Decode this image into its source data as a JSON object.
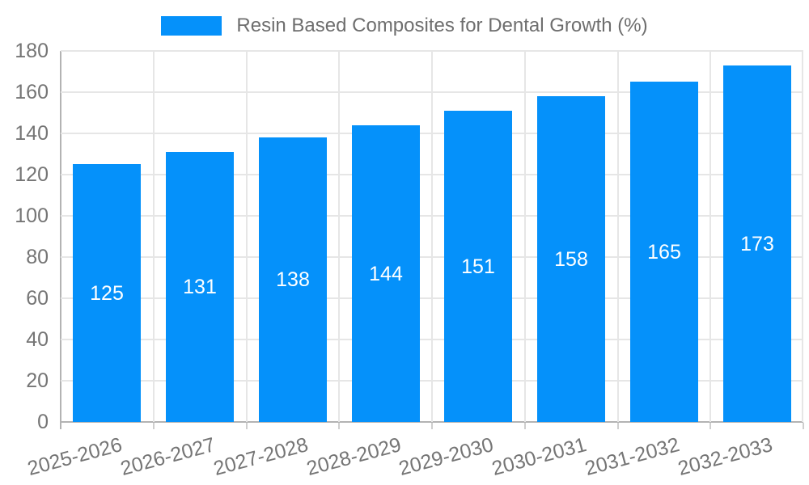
{
  "colors": {
    "bar": "#0591fa",
    "grid": "#e6e6e6",
    "axis": "#b3b3b3",
    "tick": "#cfcfcf",
    "tick_text": "#757575",
    "legend_text": "#6e6e6e",
    "bar_label": "#ffffff",
    "background": "#ffffff"
  },
  "chart_data": {
    "type": "bar",
    "title": "Resin Based Composites for Dental Growth (%)",
    "categories": [
      "2025-2026",
      "2026-2027",
      "2027-2028",
      "2028-2029",
      "2029-2030",
      "2030-2031",
      "2031-2032",
      "2032-2033"
    ],
    "values": [
      125,
      131,
      138,
      144,
      151,
      158,
      165,
      173
    ],
    "series_name": "Resin Based Composites for Dental Growth (%)",
    "xlabel": "",
    "ylabel": "",
    "ylim": [
      0,
      180
    ],
    "y_ticks": [
      0,
      20,
      40,
      60,
      80,
      100,
      120,
      140,
      160,
      180
    ],
    "grid": true,
    "vertical_grid": true,
    "legend_position": "top-center",
    "bar_labels_inside": true,
    "x_label_rotation_deg": -15
  }
}
